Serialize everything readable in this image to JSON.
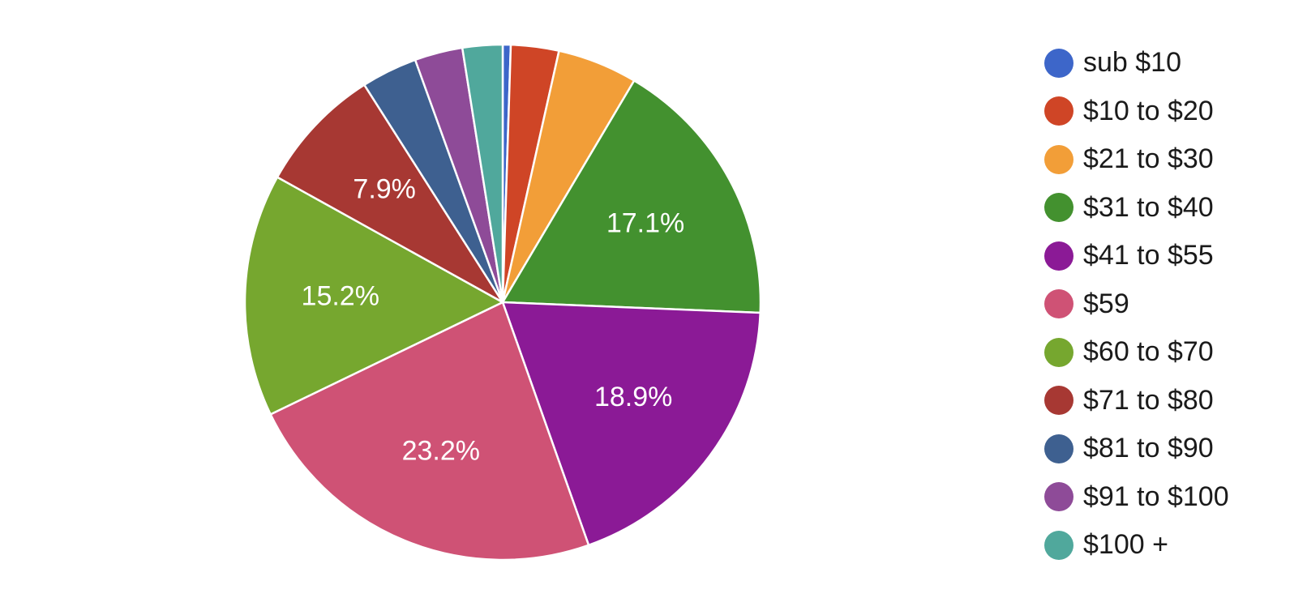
{
  "chart_data": {
    "type": "pie",
    "legend_position": "right",
    "start_angle_deg": 0,
    "direction": "clockwise",
    "categories": [
      "sub $10",
      "$10 to $20",
      "$21 to $30",
      "$31 to $40",
      "$41 to $55",
      "$59",
      "$60 to $70",
      "$71 to $80",
      "$81 to $90",
      "$91 to $100",
      "$100 +"
    ],
    "values": [
      0.5,
      3.0,
      5.0,
      17.1,
      18.9,
      23.2,
      15.2,
      7.9,
      3.5,
      3.0,
      2.5
    ],
    "data_labels": [
      "",
      "",
      "",
      "17.1%",
      "18.9%",
      "23.2%",
      "15.2%",
      "7.9%",
      "",
      "",
      ""
    ],
    "colors": [
      "#3d66c9",
      "#cf4526",
      "#f29e38",
      "#43912f",
      "#8b1a96",
      "#cf5275",
      "#76a72f",
      "#a73833",
      "#3e6090",
      "#8e4b98",
      "#50a89c"
    ],
    "slice_border_color": "#ffffff"
  }
}
